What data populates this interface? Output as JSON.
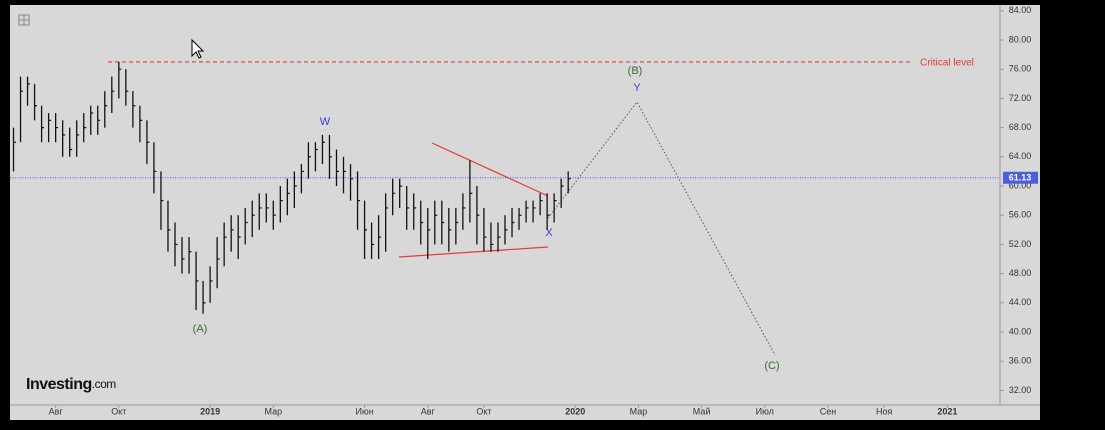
{
  "chart_data": {
    "type": "ohlc",
    "categories": [
      null,
      null,
      null,
      null,
      null,
      null,
      "Авг",
      null,
      null,
      null,
      null,
      null,
      null,
      null,
      null,
      "Окт",
      null,
      null,
      null,
      null,
      null,
      null,
      null,
      null,
      null,
      null,
      null,
      null,
      "2019",
      null,
      null,
      null,
      null,
      null,
      null,
      null,
      null,
      "Мар",
      null,
      null,
      null,
      null,
      null,
      null,
      null,
      null,
      null,
      null,
      null,
      null,
      "Июн",
      null,
      null,
      null,
      null,
      null,
      null,
      null,
      null,
      "Авг",
      null,
      null,
      null,
      null,
      null,
      null,
      null,
      "Окт",
      null,
      null,
      null,
      null,
      null,
      null,
      null,
      null,
      null,
      null,
      null,
      null,
      "2020",
      null,
      null,
      null,
      null,
      null,
      null,
      null,
      null,
      "Мар",
      null,
      null,
      null,
      null,
      null,
      null,
      null,
      null,
      "Май",
      null,
      null,
      null,
      null,
      null,
      null,
      null,
      null,
      "Июл",
      null,
      null,
      null,
      null,
      null,
      null,
      null,
      null,
      "Сен",
      null,
      null,
      null,
      null,
      null,
      null,
      null,
      "Ноя",
      null,
      null,
      null,
      null,
      null,
      null,
      null,
      null,
      "2021",
      null,
      null,
      null,
      null,
      null,
      null,
      null
    ],
    "high": [
      68,
      75,
      75,
      74,
      71,
      70,
      70,
      69,
      68,
      69,
      70,
      71,
      71,
      73,
      75,
      77,
      76,
      73,
      71,
      69,
      66,
      62,
      58,
      55,
      53,
      53,
      51,
      47,
      49,
      53,
      55,
      56,
      56,
      57,
      58,
      59,
      59,
      58,
      60,
      61,
      62,
      63,
      66,
      66,
      67,
      67,
      65,
      64,
      63,
      62,
      58,
      55,
      56,
      59,
      61,
      61,
      60,
      59,
      58,
      57,
      58,
      58,
      57,
      57,
      59,
      63.5,
      60,
      57,
      55,
      55,
      56,
      57,
      57,
      58,
      58,
      59,
      59,
      59,
      61,
      62,
      null,
      null,
      null,
      null,
      null,
      null,
      null,
      null,
      null,
      null,
      null,
      null,
      null,
      null,
      null,
      null,
      null,
      null,
      null,
      null,
      null,
      null,
      null,
      null,
      null,
      null,
      null,
      null,
      null,
      null,
      null,
      null,
      null,
      null,
      null,
      null,
      null,
      null,
      null,
      null,
      null,
      null,
      null,
      null,
      null,
      null,
      null,
      null,
      null,
      null,
      null,
      null,
      null,
      null,
      null,
      null,
      null,
      null,
      null,
      null,
      null
    ],
    "low": [
      62,
      66,
      71,
      69,
      66,
      66,
      66,
      64,
      64,
      64,
      66,
      67,
      67,
      68,
      70,
      72,
      71,
      68,
      66,
      63,
      59,
      54,
      51,
      49,
      48,
      48,
      43,
      42.5,
      44,
      46,
      49,
      51,
      50,
      52,
      53,
      54,
      55,
      54,
      55,
      56,
      57,
      59,
      61,
      62,
      63,
      61,
      60,
      59,
      58,
      54,
      50,
      50,
      50,
      51,
      56,
      57,
      54,
      54,
      52,
      50,
      52,
      52,
      51,
      52,
      54,
      55,
      52,
      51,
      51,
      51,
      52,
      53,
      54,
      55,
      55,
      56,
      54,
      55,
      57,
      59,
      null,
      null,
      null,
      null,
      null,
      null,
      null,
      null,
      null,
      null,
      null,
      null,
      null,
      null,
      null,
      null,
      null,
      null,
      null,
      null,
      null,
      null,
      null,
      null,
      null,
      null,
      null,
      null,
      null,
      null,
      null,
      null,
      null,
      null,
      null,
      null,
      null,
      null,
      null,
      null,
      null,
      null,
      null,
      null,
      null,
      null,
      null,
      null,
      null,
      null,
      null,
      null,
      null,
      null,
      null,
      null,
      null,
      null,
      null,
      null,
      null
    ],
    "close": [
      66,
      73,
      74,
      71,
      68,
      69,
      68,
      67,
      65,
      67,
      68,
      70,
      69,
      71,
      73,
      76,
      73,
      71,
      69,
      66,
      62,
      58,
      54,
      52,
      50,
      51,
      47,
      44,
      47,
      50,
      53,
      54,
      53,
      55,
      56,
      57,
      57,
      56,
      58,
      59,
      60,
      62,
      64,
      65,
      66,
      64,
      62,
      62,
      61,
      58,
      54,
      52,
      53,
      57,
      59,
      60,
      57,
      57,
      55,
      54,
      56,
      55,
      54,
      55,
      57,
      59,
      56,
      53,
      52,
      53,
      54,
      55,
      56,
      57,
      57,
      58,
      56,
      58,
      60,
      61,
      null,
      null,
      null,
      null,
      null,
      null,
      null,
      null,
      null,
      null,
      null,
      null,
      null,
      null,
      null,
      null,
      null,
      null,
      null,
      null,
      null,
      null,
      null,
      null,
      null,
      null,
      null,
      null,
      null,
      null,
      null,
      null,
      null,
      null,
      null,
      null,
      null,
      null,
      null,
      null,
      null,
      null,
      null,
      null,
      null,
      null,
      null,
      null,
      null,
      null,
      null,
      null,
      null,
      null,
      null,
      null,
      null,
      null,
      null,
      null,
      null
    ],
    "color": "#111111",
    "ylim": [
      30,
      84.8
    ],
    "yticks": [
      {
        "value": 32,
        "label": "32.00"
      },
      {
        "value": 36,
        "label": "36.00"
      },
      {
        "value": 40,
        "label": "40.00"
      },
      {
        "value": 44,
        "label": "44.00"
      },
      {
        "value": 48,
        "label": "48.00"
      },
      {
        "value": 52,
        "label": "52.00"
      },
      {
        "value": 56,
        "label": "56.00"
      },
      {
        "value": 60,
        "label": "60.00"
      },
      {
        "value": 64,
        "label": "64.00"
      },
      {
        "value": 68,
        "label": "68.00"
      },
      {
        "value": 72,
        "label": "72.00"
      },
      {
        "value": 76,
        "label": "76.00"
      },
      {
        "value": 80,
        "label": "80.00"
      },
      {
        "value": 84,
        "label": "84.00"
      }
    ],
    "critical_level": {
      "value": 77,
      "label": "Critical level",
      "color": "#e53935"
    },
    "last_price": {
      "value": 61.13,
      "label": "61.13",
      "color": "#4a5fe0"
    },
    "wave_labels": {
      "a": "(A)",
      "w": "W",
      "x": "X",
      "y": "Y",
      "b": "(B)",
      "c": "(C)"
    },
    "brand": {
      "name": "Investing",
      "suffix": ".com"
    }
  }
}
